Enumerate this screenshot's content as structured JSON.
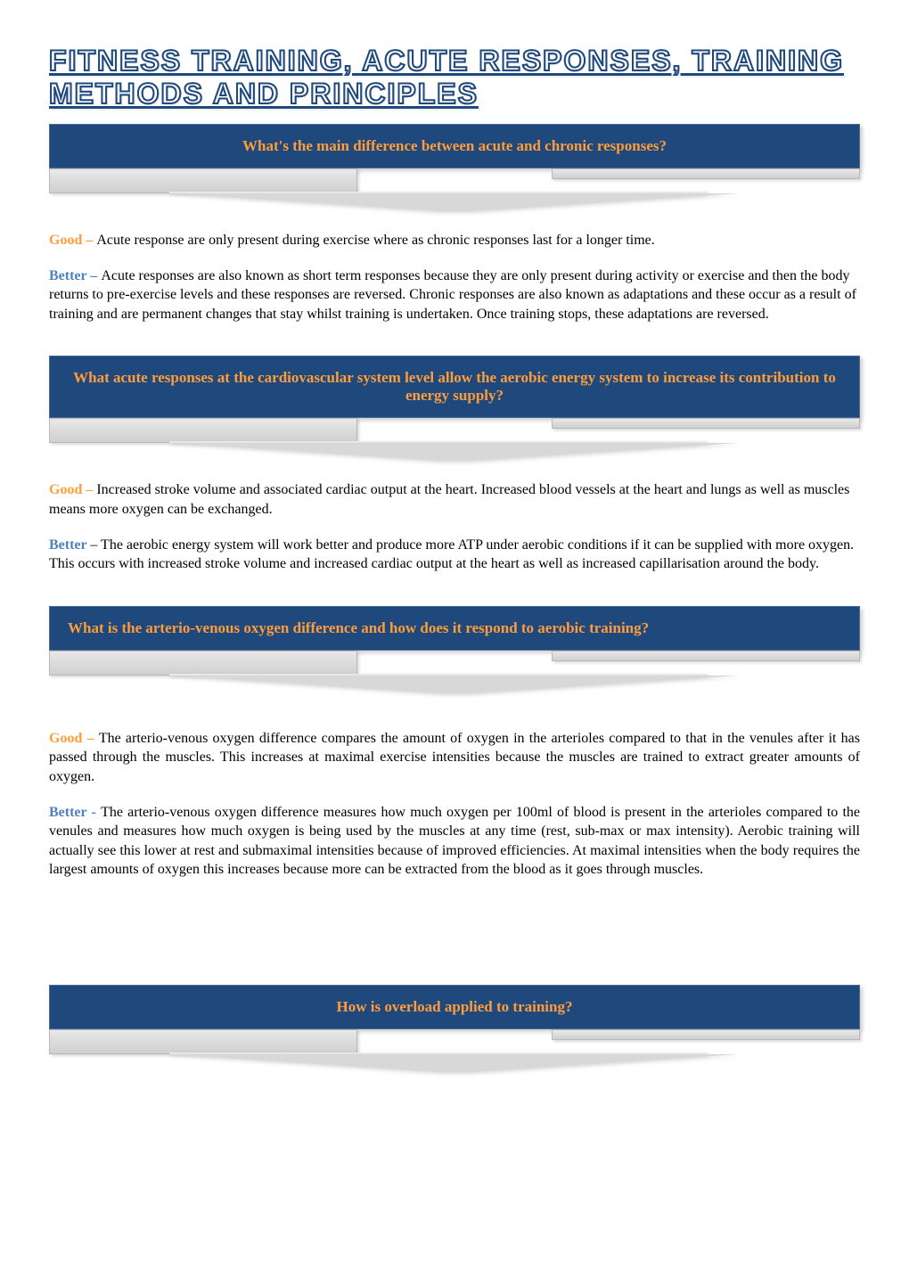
{
  "colors": {
    "box_bg": "#1f497d",
    "box_text": "#ff9c3a",
    "good_label": "#ff9c3a",
    "better_label": "#4f81bd",
    "body_text": "#000000",
    "page_bg": "#ffffff",
    "arrow_fill": "#d8d8d8",
    "arrow_border": "#b8b8b8"
  },
  "typography": {
    "title_fontsize": 32,
    "box_fontsize": 17,
    "body_fontsize": 16,
    "title_font": "Arial",
    "body_font": "Georgia"
  },
  "title": "FITNESS TRAINING, ACUTE RESPONSES, TRAINING METHODS AND PRINCIPLES",
  "sections": [
    {
      "question": "What's the main difference between acute and chronic responses?",
      "question_align": "center",
      "good_label": "Good – ",
      "good_text": "Acute response are only present during exercise where as chronic responses last for a longer time.",
      "better_label": "Better – ",
      "better_text": "Acute responses are also known as short term responses because they are only present  during activity or exercise and then the body returns to pre-exercise levels and these responses are reversed. Chronic responses are also known as adaptations and these occur as a result of training and are permanent changes that stay whilst training is undertaken. Once training stops,  these adaptations are reversed.",
      "justify": false
    },
    {
      "question": "What acute responses at the cardiovascular system level allow the aerobic energy system to increase its contribution to energy supply?",
      "question_align": "center",
      "good_label": "Good – ",
      "good_text": "Increased stroke volume and associated cardiac output at the heart. Increased blood vessels at the heart and lungs as well as muscles means more oxygen can be exchanged.",
      "better_label": "Better ",
      "better_text": "– The aerobic energy system will work better and produce more ATP under aerobic conditions if it can be supplied with more oxygen. This occurs with increased stroke volume and  increased cardiac output at the heart as well as increased capillarisation around the body.",
      "justify": false
    },
    {
      "question": "What is the arterio-venous oxygen difference and how does it respond to aerobic training?",
      "question_align": "left",
      "good_label": "Good – ",
      "good_text": "The arterio-venous oxygen difference compares the amount of oxygen in the arterioles compared to that in the venules after it has passed through the muscles. This increases at maximal exercise intensities because the muscles are trained to extract greater amounts of oxygen.",
      "better_label": "Better - ",
      "better_text": "The arterio-venous oxygen difference measures how much oxygen per 100ml of blood is present in the arterioles compared to the venules and measures how much oxygen is being used by the muscles at any time (rest, sub-max or max intensity). Aerobic training  will actually see this lower at rest and submaximal intensities because of improved efficiencies. At maximal intensities when the body requires the largest amounts of oxygen this increases because more can be extracted from the blood as it goes through muscles.",
      "justify": true
    }
  ],
  "final_question": "How is overload applied to training?"
}
